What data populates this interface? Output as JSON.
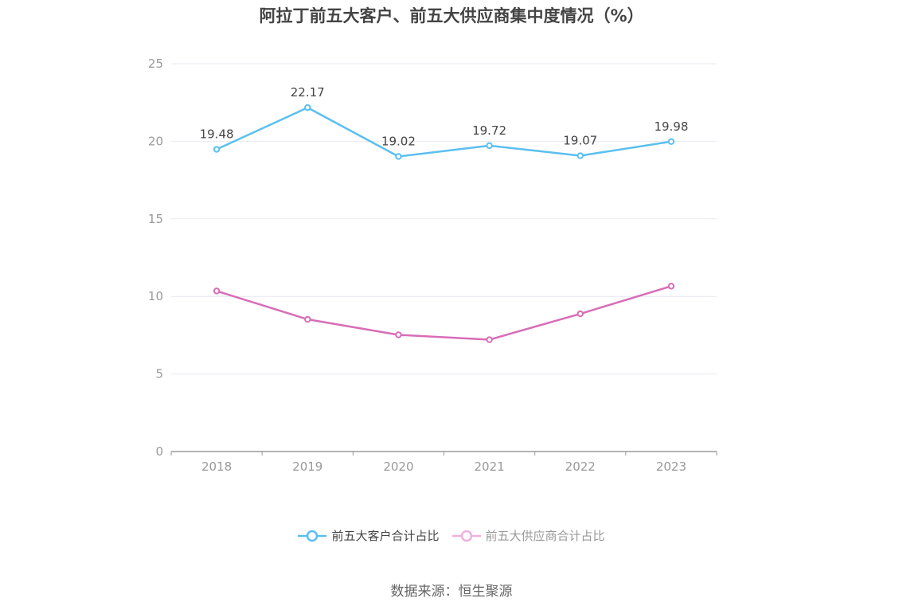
{
  "title": "阿拉丁前五大客户、前五大供应商集中度情况（%）",
  "source": "数据来源：恒生聚源",
  "colors": {
    "customers": "#5bbff0",
    "suppliers": "#d86db8",
    "grid": "#e6e9f0",
    "axis": "#9a9a9a",
    "tick_text": "#999999",
    "label_text": "#444444"
  },
  "chart_data": {
    "type": "line",
    "title": "阿拉丁前五大客户、前五大供应商集中度情况（%）",
    "xlabel": "",
    "ylabel": "",
    "categories": [
      "2018",
      "2019",
      "2020",
      "2021",
      "2022",
      "2023"
    ],
    "ylim": [
      0,
      25
    ],
    "yticks": [
      0,
      5,
      10,
      15,
      20,
      25
    ],
    "grid": true,
    "legend_position": "bottom",
    "series": [
      {
        "name": "前五大客户合计占比",
        "values": [
          19.48,
          22.17,
          19.02,
          19.72,
          19.07,
          19.98
        ],
        "data_labels": [
          "19.48",
          "22.17",
          "19.02",
          "19.72",
          "19.07",
          "19.98"
        ],
        "color": "#5bbff0"
      },
      {
        "name": "前五大供应商合计占比",
        "values": [
          10.35,
          8.52,
          7.52,
          7.21,
          8.88,
          10.66
        ],
        "color": "#d86db8"
      }
    ]
  }
}
